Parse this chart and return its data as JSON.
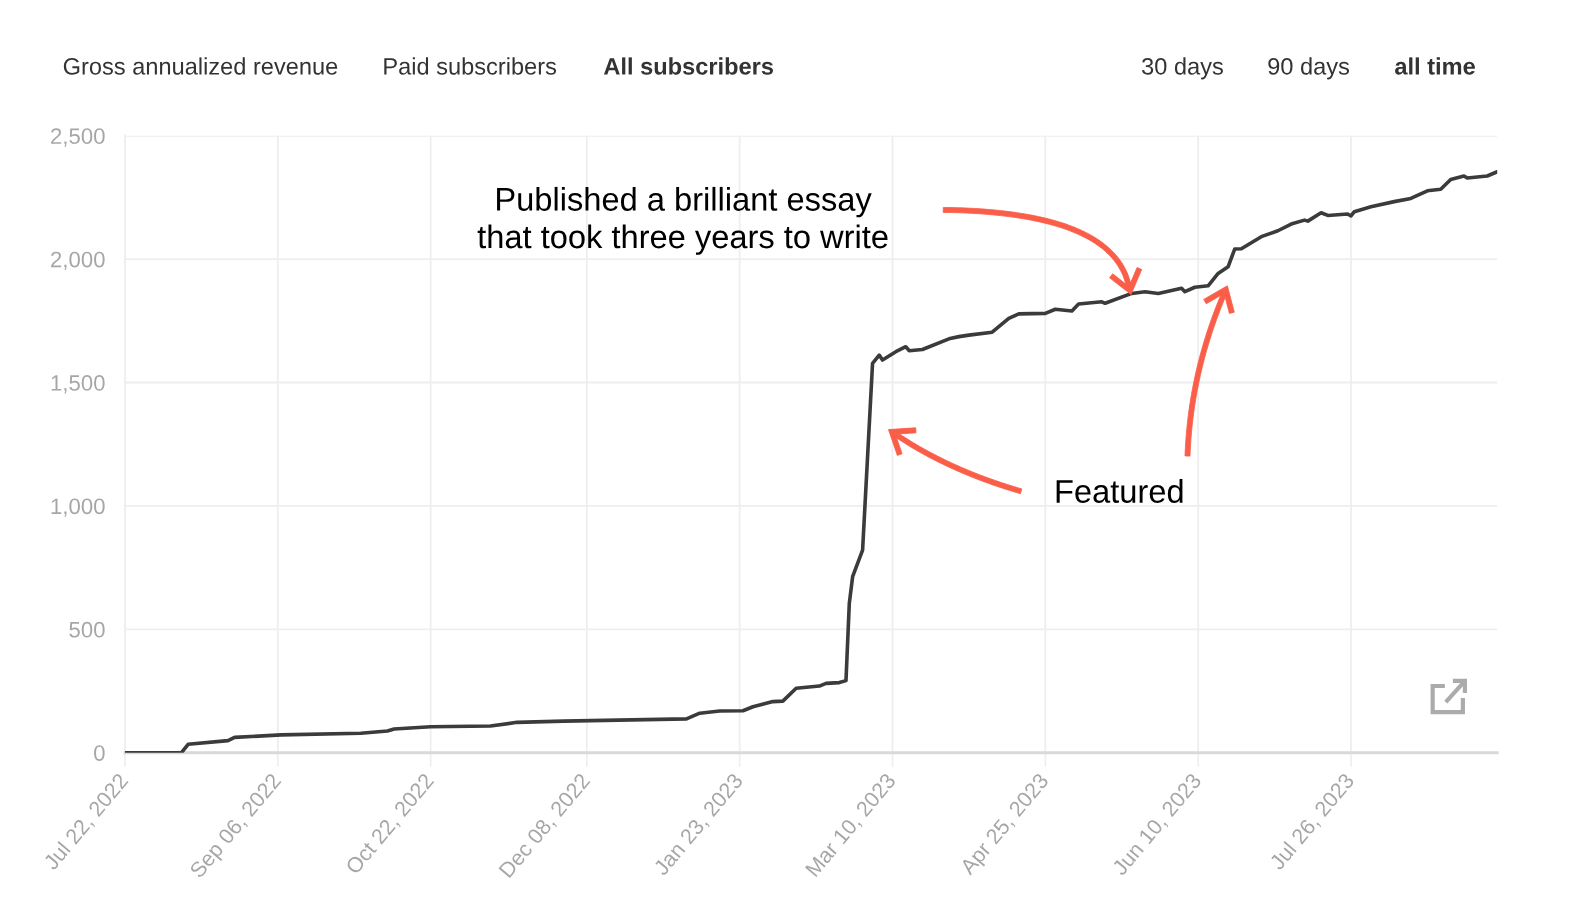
{
  "chart_data": {
    "type": "line",
    "x": [
      "2022-07-22",
      "2022-08-08",
      "2022-08-10",
      "2022-08-22",
      "2022-08-24",
      "2022-09-07",
      "2022-10-01",
      "2022-10-09",
      "2022-10-11",
      "2022-10-22",
      "2022-11-09",
      "2022-11-17",
      "2022-12-01",
      "2023-01-07",
      "2023-01-11",
      "2023-01-17",
      "2023-01-24",
      "2023-01-27",
      "2023-02-02",
      "2023-02-05",
      "2023-02-09",
      "2023-02-16",
      "2023-02-18",
      "2023-02-22",
      "2023-02-24",
      "2023-02-25",
      "2023-02-26",
      "2023-03-01",
      "2023-03-04",
      "2023-03-06",
      "2023-03-07",
      "2023-03-11",
      "2023-03-14",
      "2023-03-15",
      "2023-03-19",
      "2023-03-27",
      "2023-03-30",
      "2023-04-02",
      "2023-04-09",
      "2023-04-14",
      "2023-04-17",
      "2023-04-25",
      "2023-04-28",
      "2023-05-03",
      "2023-05-05",
      "2023-05-12",
      "2023-05-13",
      "2023-05-21",
      "2023-05-25",
      "2023-05-29",
      "2023-06-05",
      "2023-06-06",
      "2023-06-09",
      "2023-06-13",
      "2023-06-16",
      "2023-06-19",
      "2023-06-21",
      "2023-06-23",
      "2023-06-29",
      "2023-07-04",
      "2023-07-08",
      "2023-07-12",
      "2023-07-13",
      "2023-07-17",
      "2023-07-19",
      "2023-07-25",
      "2023-07-26",
      "2023-07-27",
      "2023-08-01",
      "2023-08-08",
      "2023-08-13",
      "2023-08-18",
      "2023-08-22",
      "2023-08-25",
      "2023-08-29",
      "2023-08-30",
      "2023-09-05",
      "2023-09-08"
    ],
    "values": [
      0,
      0,
      34,
      49,
      62,
      72,
      79,
      88,
      96,
      105,
      108,
      123,
      128,
      137,
      160,
      169,
      170,
      186,
      207,
      209,
      261,
      270,
      281,
      284,
      292,
      605,
      713,
      821,
      1578,
      1611,
      1591,
      1625,
      1645,
      1629,
      1634,
      1677,
      1686,
      1692,
      1704,
      1760,
      1778,
      1780,
      1797,
      1790,
      1818,
      1827,
      1821,
      1861,
      1868,
      1861,
      1882,
      1868,
      1886,
      1892,
      1942,
      1969,
      2041,
      2042,
      2091,
      2115,
      2142,
      2158,
      2154,
      2188,
      2177,
      2183,
      2175,
      2192,
      2212,
      2233,
      2246,
      2277,
      2283,
      2323,
      2337,
      2329,
      2337,
      2354
    ],
    "color": "#3b3b3b",
    "xlim": [
      "2022-07-22",
      "2023-09-08"
    ],
    "xticks": [
      {
        "value": "2022-07-22",
        "label": "Jul 22, 2022"
      },
      {
        "value": "2022-09-06",
        "label": "Sep 06, 2022"
      },
      {
        "value": "2022-10-22",
        "label": "Oct 22, 2022"
      },
      {
        "value": "2022-12-08",
        "label": "Dec 08, 2022"
      },
      {
        "value": "2023-01-23",
        "label": "Jan 23, 2023"
      },
      {
        "value": "2023-03-10",
        "label": "Mar 10, 2023"
      },
      {
        "value": "2023-04-25",
        "label": "Apr 25, 2023"
      },
      {
        "value": "2023-06-10",
        "label": "Jun 10, 2023"
      },
      {
        "value": "2023-07-26",
        "label": "Jul 26, 2023"
      }
    ],
    "ylim": [
      0,
      2500
    ],
    "yticks": [
      0,
      500,
      {
        "value": 1000,
        "label": "1,000"
      },
      {
        "value": 1500,
        "label": "1,500"
      },
      {
        "value": 2000,
        "label": "2,000"
      },
      {
        "value": 2500,
        "label": "2,500"
      }
    ],
    "grid": true,
    "annotations": [
      "Gross annualized revenue",
      "Paid subscribers",
      "All subscribers",
      "30 days",
      "90 days",
      "all time",
      "Published a brilliant essay\nthat took three years to write",
      "Featured"
    ]
  }
}
